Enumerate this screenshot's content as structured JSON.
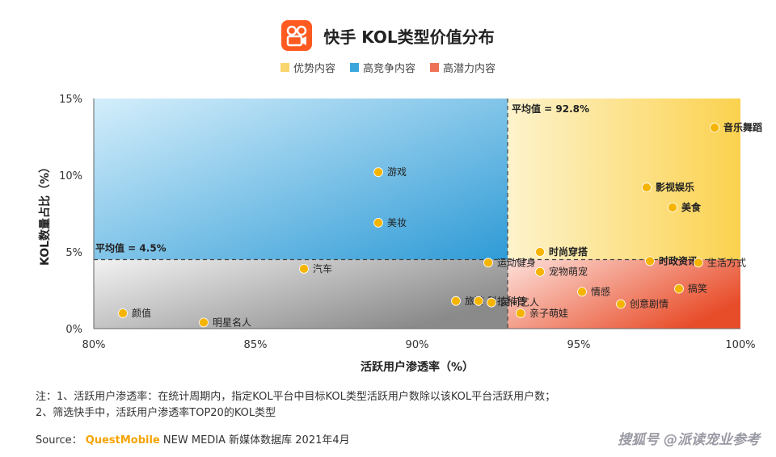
{
  "title": "快手 KOL类型价值分布",
  "legend": [
    {
      "label": "优势内容",
      "color": "#f9d56e"
    },
    {
      "label": "高竞争内容",
      "color": "#3aa6dc"
    },
    {
      "label": "高潜力内容",
      "color": "#ee7356"
    }
  ],
  "note1": "注：1、活跃用户渗透率：在统计周期内，指定KOL平台中目标KOL类型活跃用户数除以该KOL平台活跃用户数；",
  "note2": "2、筛选快手中，活跃用户渗透率TOP20的KOL类型",
  "source": {
    "prefix": "Source：",
    "brand": "QuestMobile",
    "suffix": "NEW MEDIA 新媒体数据库 2021年4月"
  },
  "watermark": "搜狐号 @派读宠业参考",
  "chart_data": {
    "type": "scatter",
    "xlabel": "活跃用户渗透率（%）",
    "ylabel": "KOL数量占比（%）",
    "xlim": [
      80,
      100
    ],
    "ylim": [
      0,
      15
    ],
    "xticks": [
      "80%",
      "85%",
      "90%",
      "95%",
      "100%"
    ],
    "yticks": [
      "0%",
      "5%",
      "10%",
      "15%"
    ],
    "avg_x": {
      "value": 92.8,
      "label": "平均值 = 92.8%"
    },
    "avg_y": {
      "value": 4.5,
      "label": "平均值 = 4.5%"
    },
    "point_color": "#f5b400",
    "points": [
      {
        "label": "音乐舞蹈",
        "x": 99.2,
        "y": 13.1,
        "bold": true
      },
      {
        "label": "游戏",
        "x": 88.8,
        "y": 10.2,
        "bold": false
      },
      {
        "label": "影视娱乐",
        "x": 97.1,
        "y": 9.2,
        "bold": true
      },
      {
        "label": "美食",
        "x": 97.9,
        "y": 7.9,
        "bold": true
      },
      {
        "label": "美妆",
        "x": 88.8,
        "y": 6.9,
        "bold": false
      },
      {
        "label": "时尚穿搭",
        "x": 93.8,
        "y": 5.0,
        "bold": true
      },
      {
        "label": "时政资讯",
        "x": 97.2,
        "y": 4.4,
        "bold": true
      },
      {
        "label": "生活方式",
        "x": 98.7,
        "y": 4.3,
        "bold": false
      },
      {
        "label": "运动健身",
        "x": 92.2,
        "y": 4.3,
        "bold": false
      },
      {
        "label": "宠物萌宠",
        "x": 93.8,
        "y": 3.7,
        "bold": false
      },
      {
        "label": "汽车",
        "x": 86.5,
        "y": 3.9,
        "bold": false
      },
      {
        "label": "旅游",
        "x": 91.2,
        "y": 1.8,
        "bold": false
      },
      {
        "label": "科技科普",
        "x": 91.9,
        "y": 1.8,
        "bold": false
      },
      {
        "label": "民间艺人",
        "x": 92.3,
        "y": 1.7,
        "bold": false
      },
      {
        "label": "情感",
        "x": 95.1,
        "y": 2.4,
        "bold": false
      },
      {
        "label": "搞笑",
        "x": 98.1,
        "y": 2.6,
        "bold": false
      },
      {
        "label": "创意剧情",
        "x": 96.3,
        "y": 1.6,
        "bold": false
      },
      {
        "label": "亲子萌娃",
        "x": 93.2,
        "y": 1.0,
        "bold": false
      },
      {
        "label": "颜值",
        "x": 80.9,
        "y": 1.0,
        "bold": false
      },
      {
        "label": "明星名人",
        "x": 83.4,
        "y": 0.4,
        "bold": false
      }
    ]
  }
}
